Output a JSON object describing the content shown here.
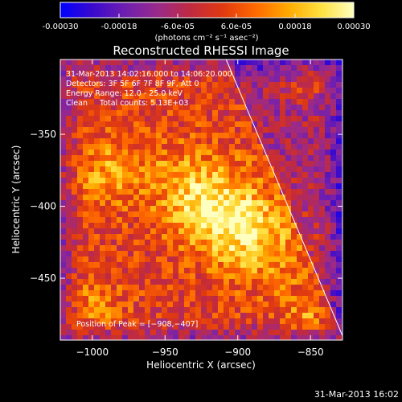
{
  "colorbar": {
    "tick_labels": [
      "-0.00030",
      "-0.00018",
      "-6.0e-05",
      "6.0e-05",
      "0.00018",
      "0.00030"
    ],
    "tick_values": [
      -0.0003,
      -0.00018,
      -6e-05,
      6e-05,
      0.00018,
      0.0003
    ],
    "range": [
      -0.0003,
      0.0003
    ],
    "unit_label": "(photons cm⁻² s⁻¹ asec⁻²)",
    "colors": [
      "#0000ff",
      "#3a0acc",
      "#6f1fb0",
      "#9a2a8a",
      "#c02a40",
      "#e03a10",
      "#ff6a00",
      "#ffaa00",
      "#ffe040",
      "#ffffc0"
    ]
  },
  "chart_data": {
    "type": "heatmap",
    "title": "Reconstructed RHESSI Image",
    "xlabel": "Heliocentric X (arcsec)",
    "ylabel": "Heliocentric Y (arcsec)",
    "xlim": [
      -1022,
      -828
    ],
    "ylim": [
      -493,
      -298
    ],
    "x_ticks": [
      -1000,
      -950,
      -900,
      -850
    ],
    "y_ticks": [
      -350,
      -400,
      -450
    ],
    "x_tick_labels": [
      "−1000",
      "−950",
      "−900",
      "−850"
    ],
    "y_tick_labels": [
      "−350",
      "−400",
      "−450"
    ],
    "peak": [
      -908,
      -407
    ],
    "limb_line": [
      [
        -908,
        -298
      ],
      [
        -828,
        -490
      ]
    ],
    "annotations": [
      "31-Mar-2013 14:02:16.000 to 14:06:20.000",
      "Detectors: 3F 5F 6F 7F 8F 9F, Att 0",
      "Energy Range: 12.0 - 25.0 keV",
      "Clean     Total counts: 5.13E+03"
    ],
    "peak_text": "Position of Peak = [−908,−407]",
    "grid": false
  },
  "footer": {
    "timestamp": "31-Mar-2013 16:02"
  }
}
